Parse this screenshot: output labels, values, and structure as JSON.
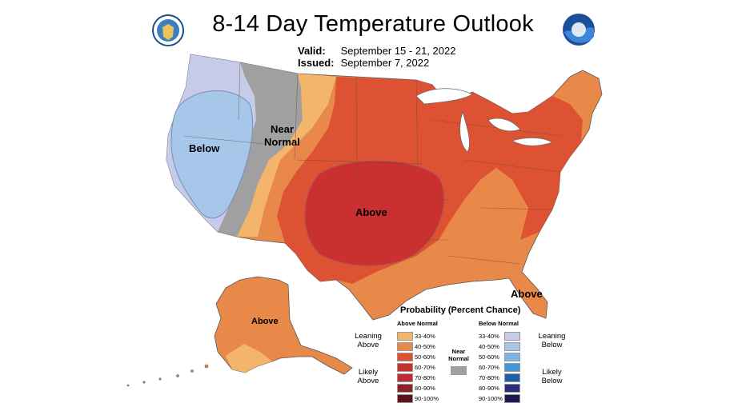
{
  "title": "8-14 Day Temperature Outlook",
  "valid_label": "Valid:",
  "valid_value": "September 15 - 21, 2022",
  "issued_label": "Issued:",
  "issued_value": "September 7, 2022",
  "logos": {
    "left": "Department of Commerce seal",
    "right": "NOAA"
  },
  "map_labels": {
    "below": "Below",
    "near_normal_1": "Near",
    "near_normal_2": "Normal",
    "above_center": "Above",
    "above_florida": "Above",
    "above_alaska": "Above"
  },
  "legend": {
    "title": "Probability (Percent Chance)",
    "above_head": "Above Normal",
    "below_head": "Below Normal",
    "leaning_above": [
      "Leaning",
      "Above"
    ],
    "likely_above": [
      "Likely",
      "Above"
    ],
    "leaning_below": [
      "Leaning",
      "Below"
    ],
    "likely_below": [
      "Likely",
      "Below"
    ],
    "near_normal": [
      "Near",
      "Normal"
    ],
    "near_color": "#a0a0a0",
    "above": [
      {
        "label": "33-40%",
        "color": "#f2b56b"
      },
      {
        "label": "40-50%",
        "color": "#e8894a"
      },
      {
        "label": "50-60%",
        "color": "#dd5233"
      },
      {
        "label": "60-70%",
        "color": "#c9302f"
      },
      {
        "label": "70-80%",
        "color": "#c52838"
      },
      {
        "label": "80-90%",
        "color": "#8c2228"
      },
      {
        "label": "90-100%",
        "color": "#5c1418"
      }
    ],
    "below": [
      {
        "label": "33-40%",
        "color": "#c5cbe8"
      },
      {
        "label": "40-50%",
        "color": "#a6c6ea"
      },
      {
        "label": "50-60%",
        "color": "#7fb3e6"
      },
      {
        "label": "60-70%",
        "color": "#4796d5"
      },
      {
        "label": "70-80%",
        "color": "#1f5fa8"
      },
      {
        "label": "80-90%",
        "color": "#2a2f7c"
      },
      {
        "label": "90-100%",
        "color": "#1c1850"
      }
    ]
  }
}
